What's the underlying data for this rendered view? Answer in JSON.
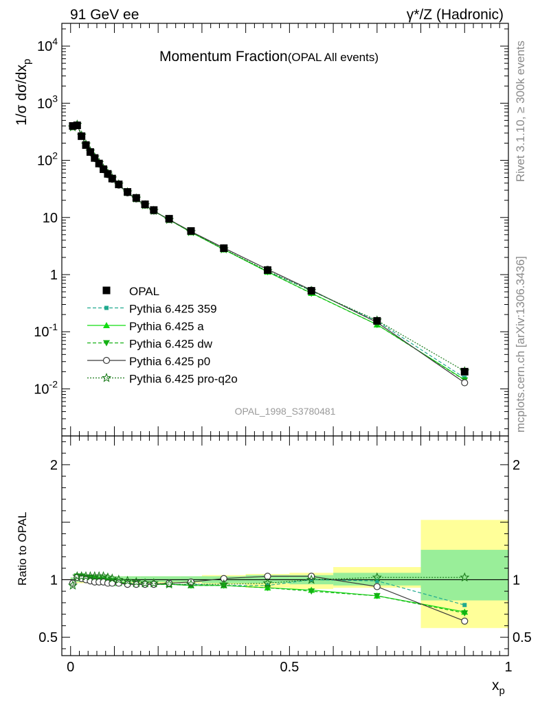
{
  "header": {
    "left": "91 GeV ee",
    "right": "γ*/Z (Hadronic)"
  },
  "side": {
    "rivet": "Rivet 3.1.10, ≥ 300k events",
    "mcplots": "mcplots.cern.ch [arXiv:1306.3436]"
  },
  "main_title": "Momentum Fraction",
  "main_title_sub": "(OPAL All events)",
  "analysis_id": "OPAL_1998_S3780481",
  "ylabel_main": "1/σ dσ/dx",
  "ylabel_main_sub": "p",
  "ylabel_ratio": "Ratio to OPAL",
  "xlabel": "x",
  "xlabel_sub": "p",
  "chart_data": [
    {
      "type": "line",
      "title": "Momentum Fraction (OPAL All events)",
      "xlabel": "x_p",
      "ylabel": "1/σ dσ/dx_p",
      "yscale": "log",
      "xlim": [
        -0.02,
        1.0
      ],
      "ylim": [
        0.0015,
        25000
      ],
      "y_ticks": [
        0.01,
        0.1,
        1,
        10,
        100,
        1000,
        10000
      ],
      "y_tick_labels": [
        "10^-2",
        "10^-1",
        "1",
        "10",
        "10^2",
        "10^3",
        "10^4"
      ],
      "x_ticks": [
        0,
        0.5,
        1
      ],
      "x_tick_labels": [
        "0",
        "0.5",
        "1"
      ],
      "legend_position": "lower-left",
      "x": [
        0.005,
        0.015,
        0.025,
        0.035,
        0.045,
        0.055,
        0.065,
        0.075,
        0.085,
        0.095,
        0.11,
        0.13,
        0.15,
        0.17,
        0.19,
        0.225,
        0.275,
        0.35,
        0.45,
        0.55,
        0.7,
        0.9
      ],
      "data": {
        "name": "OPAL",
        "color": "#000000",
        "values": [
          400,
          410,
          265,
          185,
          140,
          110,
          88,
          70,
          58,
          48,
          38,
          28,
          22,
          17,
          13.5,
          9.5,
          5.8,
          2.9,
          1.2,
          0.52,
          0.155,
          0.02
        ],
        "ratio_band_inner": [
          [
            0.98,
            1.02
          ],
          [
            0.98,
            1.04
          ],
          [
            0.98,
            1.04
          ],
          [
            0.98,
            1.04
          ],
          [
            0.98,
            1.04
          ],
          [
            0.98,
            1.04
          ],
          [
            0.98,
            1.04
          ],
          [
            0.98,
            1.04
          ],
          [
            0.98,
            1.04
          ],
          [
            0.98,
            1.03
          ],
          [
            0.98,
            1.03
          ],
          [
            0.98,
            1.03
          ],
          [
            0.98,
            1.03
          ],
          [
            0.98,
            1.03
          ],
          [
            0.98,
            1.03
          ],
          [
            0.98,
            1.03
          ],
          [
            0.98,
            1.03
          ],
          [
            0.97,
            1.03
          ],
          [
            0.97,
            1.04
          ],
          [
            0.96,
            1.04
          ],
          [
            0.95,
            1.06
          ],
          [
            0.82,
            1.26
          ]
        ],
        "ratio_band_outer": [
          [
            0.98,
            1.02
          ],
          [
            0.97,
            1.04
          ],
          [
            0.97,
            1.04
          ],
          [
            0.97,
            1.04
          ],
          [
            0.97,
            1.04
          ],
          [
            0.97,
            1.04
          ],
          [
            0.97,
            1.04
          ],
          [
            0.97,
            1.04
          ],
          [
            0.97,
            1.04
          ],
          [
            0.97,
            1.03
          ],
          [
            0.97,
            1.03
          ],
          [
            0.97,
            1.03
          ],
          [
            0.97,
            1.03
          ],
          [
            0.97,
            1.03
          ],
          [
            0.97,
            1.03
          ],
          [
            0.97,
            1.03
          ],
          [
            0.97,
            1.03
          ],
          [
            0.96,
            1.04
          ],
          [
            0.93,
            1.05
          ],
          [
            0.92,
            1.06
          ],
          [
            0.93,
            1.11
          ],
          [
            0.58,
            1.52
          ]
        ]
      },
      "series": [
        {
          "name": "Pythia 6.425 359",
          "color": "#20a98f",
          "dash": "5,3",
          "marker": "square-small",
          "ratio": [
            0.97,
            1.03,
            1.03,
            1.02,
            1.01,
            1.0,
            0.99,
            0.99,
            0.98,
            0.98,
            0.97,
            0.97,
            0.97,
            0.96,
            0.96,
            0.96,
            0.96,
            0.95,
            0.95,
            1.0,
            0.99,
            0.78
          ]
        },
        {
          "name": "Pythia 6.425 a",
          "color": "#10dd10",
          "dash": "",
          "marker": "triangle-up",
          "ratio": [
            0.97,
            1.02,
            1.02,
            1.01,
            1.0,
            0.99,
            0.98,
            0.98,
            0.98,
            0.97,
            0.97,
            0.97,
            0.96,
            0.96,
            0.96,
            0.96,
            0.95,
            0.95,
            0.93,
            0.91,
            0.86,
            0.72
          ]
        },
        {
          "name": "Pythia 6.425 dw",
          "color": "#14b014",
          "dash": "5,3",
          "marker": "triangle-down",
          "ratio": [
            0.96,
            1.03,
            1.03,
            1.02,
            1.02,
            1.01,
            1.0,
            1.0,
            0.99,
            0.99,
            0.98,
            0.97,
            0.97,
            0.96,
            0.96,
            0.96,
            0.95,
            0.95,
            0.93,
            0.9,
            0.86,
            0.71
          ]
        },
        {
          "name": "Pythia 6.425 p0",
          "color": "#3a3a3a",
          "dash": "",
          "marker": "circle-open",
          "ratio": [
            0.97,
            1.02,
            1.01,
            1.0,
            0.99,
            0.98,
            0.98,
            0.98,
            0.97,
            0.97,
            0.97,
            0.96,
            0.96,
            0.96,
            0.96,
            0.97,
            0.98,
            1.01,
            1.03,
            1.03,
            0.94,
            0.64
          ]
        },
        {
          "name": "Pythia 6.425 pro-q2o",
          "color": "#1a7a1a",
          "dash": "2,2",
          "marker": "star-open",
          "ratio": [
            0.95,
            1.03,
            1.03,
            1.03,
            1.03,
            1.03,
            1.03,
            1.03,
            1.02,
            1.01,
            1.0,
            0.99,
            0.98,
            0.97,
            0.97,
            0.96,
            0.96,
            0.96,
            0.97,
            1.0,
            1.02,
            1.02
          ]
        }
      ]
    },
    {
      "type": "line",
      "title": "",
      "xlabel": "x_p",
      "ylabel": "Ratio to OPAL",
      "ylim": [
        0.34,
        2.25
      ],
      "y_ticks": [
        0.5,
        1,
        2
      ],
      "y_tick_labels": [
        "0.5",
        "1",
        "2"
      ],
      "x_ticks": [
        0,
        0.5,
        1
      ],
      "x_tick_labels": [
        "0",
        "0.5",
        "1"
      ],
      "reference_line": 1
    }
  ]
}
